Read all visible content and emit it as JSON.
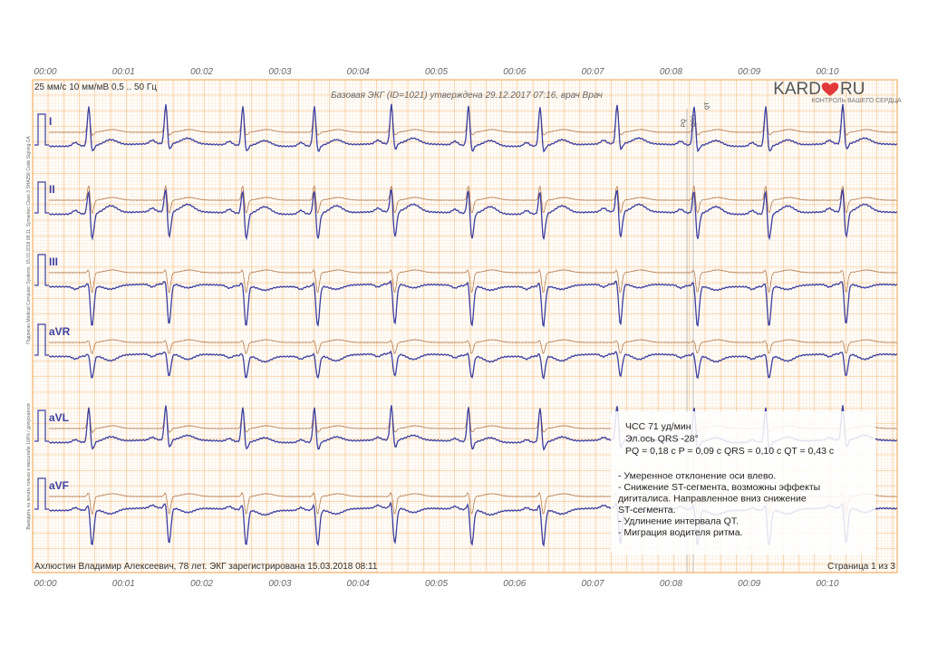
{
  "time_labels": [
    "00:00",
    "00:01",
    "00:02",
    "00:03",
    "00:04",
    "00:05",
    "00:06",
    "00:07",
    "00:08",
    "00:09",
    "00:10"
  ],
  "header": {
    "settings": "25 мм/с  10 мм/мВ  0,5 .. 50 Гц",
    "note": "Базовая ЭКГ (ID=1021) утверждена 29.12.2017 07:16, врач Врач",
    "logo": {
      "left": "KARD",
      "right": "RU",
      "tagline": "КОНТРОЛЬ ВАШЕГО СЕРДЦА"
    },
    "side_texts": [
      "Подписан Medical Computer Systems, 15.03.2018 08:11, Symantec Class 3 SHA256 Code Signing CA",
      "Выводить на печать только в масштабе 100% / допускается"
    ]
  },
  "markers": [
    "PQ",
    "QRS",
    "QT"
  ],
  "leads": [
    "I",
    "II",
    "III",
    "aVR",
    "aVL",
    "aVF"
  ],
  "summary": {
    "lines": [
      "ЧСС 71 уд/мин",
      "Эл.ось QRS -28°",
      "PQ = 0,18 с  P = 0,09 с  QRS = 0,10 с  QT = 0,43 с"
    ],
    "findings": [
      "- Умеренное отклонение оси влево.",
      "- Снижение ST-сегмента, возможны эффекты",
      "дигиталиса. Направленное вниз снижение",
      "ST-сегмента.",
      "- Удлинение интервала QT.",
      "- Миграция водителя ритма."
    ]
  },
  "footer": {
    "patient": "Ахлюстин Владимир Алексеевич, 78 лет. ЭКГ зарегистрирована 15.03.2018 08:11",
    "page": "Страница 1 из 3"
  }
}
